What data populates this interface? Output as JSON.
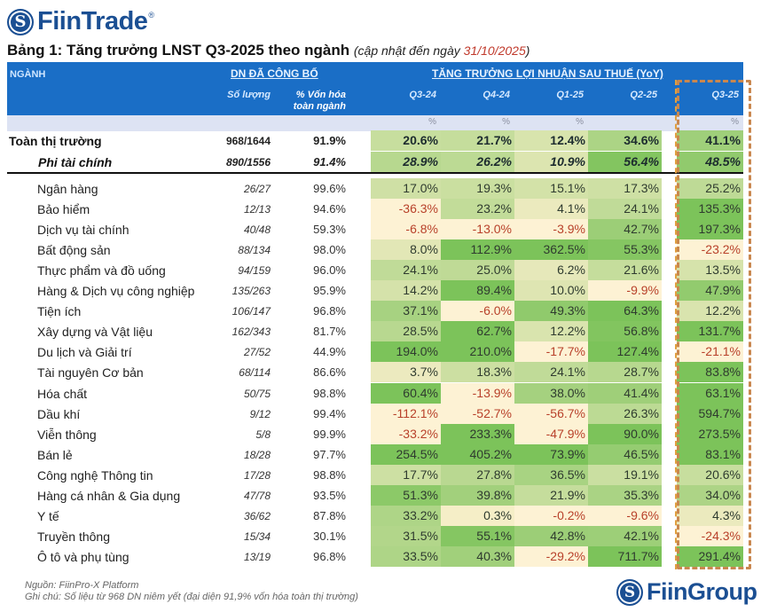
{
  "brand": {
    "top_logo": "FiinTrade",
    "top_logo_mark": "reg-mark",
    "bottom_logo": "FiinGroup"
  },
  "title": {
    "main": "Bảng 1: Tăng trưởng LNST Q3-2025 theo ngành",
    "sub_prefix": "(cập nhật đến ngày ",
    "date": "31/10/2025",
    "sub_suffix": ")"
  },
  "header": {
    "sector": "NGÀNH",
    "group_reported": "DN ĐÃ CÔNG BỐ",
    "count_col": "Số lượng",
    "cap_col_line1": "% Vốn hóa",
    "cap_col_line2": "toàn ngành",
    "group_growth": "TĂNG TRƯỞNG LỢI NHUẬN SAU THUẾ (YoY)",
    "quarters": [
      "Q3-24",
      "Q4-24",
      "Q1-25",
      "Q2-25",
      "Q3-25"
    ],
    "units": [
      "%",
      "%",
      "%",
      "",
      "%"
    ]
  },
  "highlight_column": "Q3-25",
  "colors": {
    "header_blue": "#1a6ec6",
    "negative": "#b8412a",
    "positive": "#2f3b2f",
    "highlight_border": "#c9874f",
    "strong_green": "#7cc35a",
    "pale": "#fdf2d4"
  },
  "rows": [
    {
      "type": "total",
      "name": "Toàn thị trường",
      "count": "968/1644",
      "cap": "91.9%",
      "values": [
        "20.6%",
        "21.7%",
        "12.4%",
        "34.6%",
        "41.1%"
      ]
    },
    {
      "type": "sub",
      "name": "Phi tài chính",
      "count": "890/1556",
      "cap": "91.4%",
      "values": [
        "28.9%",
        "26.2%",
        "10.9%",
        "56.4%",
        "48.5%"
      ]
    },
    {
      "type": "sector",
      "name": "Ngân hàng",
      "count": "26/27",
      "cap": "99.6%",
      "values": [
        "17.0%",
        "19.3%",
        "15.1%",
        "17.3%",
        "25.2%"
      ]
    },
    {
      "type": "sector",
      "name": "Bảo hiểm",
      "count": "12/13",
      "cap": "94.6%",
      "values": [
        "-36.3%",
        "23.2%",
        "4.1%",
        "24.1%",
        "135.3%"
      ]
    },
    {
      "type": "sector",
      "name": "Dịch vụ tài chính",
      "count": "40/48",
      "cap": "59.3%",
      "values": [
        "-6.8%",
        "-13.0%",
        "-3.9%",
        "42.7%",
        "197.3%"
      ]
    },
    {
      "type": "sector",
      "name": "Bất động sản",
      "count": "88/134",
      "cap": "98.0%",
      "values": [
        "8.0%",
        "112.9%",
        "362.5%",
        "55.3%",
        "-23.2%"
      ]
    },
    {
      "type": "sector",
      "name": "Thực phẩm và đồ uống",
      "count": "94/159",
      "cap": "96.0%",
      "values": [
        "24.1%",
        "25.0%",
        "6.2%",
        "21.6%",
        "13.5%"
      ]
    },
    {
      "type": "sector",
      "name": "Hàng & Dịch vụ công nghiệp",
      "count": "135/263",
      "cap": "95.9%",
      "values": [
        "14.2%",
        "89.4%",
        "10.0%",
        "-9.9%",
        "47.9%"
      ]
    },
    {
      "type": "sector",
      "name": "Tiện ích",
      "count": "106/147",
      "cap": "96.8%",
      "values": [
        "37.1%",
        "-6.0%",
        "49.3%",
        "64.3%",
        "12.2%"
      ]
    },
    {
      "type": "sector",
      "name": "Xây dựng và Vật liệu",
      "count": "162/343",
      "cap": "81.7%",
      "values": [
        "28.5%",
        "62.7%",
        "12.2%",
        "56.8%",
        "131.7%"
      ]
    },
    {
      "type": "sector",
      "name": "Du lịch và Giải trí",
      "count": "27/52",
      "cap": "44.9%",
      "values": [
        "194.0%",
        "210.0%",
        "-17.7%",
        "127.4%",
        "-21.1%"
      ]
    },
    {
      "type": "sector",
      "name": "Tài nguyên Cơ bản",
      "count": "68/114",
      "cap": "86.6%",
      "values": [
        "3.7%",
        "18.3%",
        "24.1%",
        "28.7%",
        "83.8%"
      ]
    },
    {
      "type": "sector",
      "name": "Hóa chất",
      "count": "50/75",
      "cap": "98.8%",
      "values": [
        "60.4%",
        "-13.9%",
        "38.0%",
        "41.4%",
        "63.1%"
      ]
    },
    {
      "type": "sector",
      "name": "Dầu khí",
      "count": "9/12",
      "cap": "99.4%",
      "values": [
        "-112.1%",
        "-52.7%",
        "-56.7%",
        "26.3%",
        "594.7%"
      ]
    },
    {
      "type": "sector",
      "name": "Viễn thông",
      "count": "5/8",
      "cap": "99.9%",
      "values": [
        "-33.2%",
        "233.3%",
        "-47.9%",
        "90.0%",
        "273.5%"
      ]
    },
    {
      "type": "sector",
      "name": "Bán lẻ",
      "count": "18/28",
      "cap": "97.7%",
      "values": [
        "254.5%",
        "405.2%",
        "73.9%",
        "46.5%",
        "83.1%"
      ]
    },
    {
      "type": "sector",
      "name": "Công nghệ Thông tin",
      "count": "17/28",
      "cap": "98.8%",
      "values": [
        "17.7%",
        "27.8%",
        "36.5%",
        "19.1%",
        "20.6%"
      ]
    },
    {
      "type": "sector",
      "name": "Hàng cá nhân & Gia dụng",
      "count": "47/78",
      "cap": "93.5%",
      "values": [
        "51.3%",
        "39.8%",
        "21.9%",
        "35.3%",
        "34.0%"
      ]
    },
    {
      "type": "sector",
      "name": "Y tế",
      "count": "36/62",
      "cap": "87.8%",
      "values": [
        "33.2%",
        "0.3%",
        "-0.2%",
        "-9.6%",
        "4.3%"
      ]
    },
    {
      "type": "sector",
      "name": "Truyền thông",
      "count": "15/34",
      "cap": "30.1%",
      "values": [
        "31.5%",
        "55.1%",
        "42.8%",
        "42.1%",
        "-24.3%"
      ]
    },
    {
      "type": "sector",
      "name": "Ô tô và phụ tùng",
      "count": "13/19",
      "cap": "96.8%",
      "values": [
        "33.5%",
        "40.3%",
        "-29.2%",
        "711.7%",
        "291.4%"
      ]
    }
  ],
  "footer": {
    "source": "Nguồn: FiinPro-X Platform",
    "note": "Ghi chú: Số liệu từ 968 DN niêm yết (đại diện 91,9% vốn hóa toàn thị trường)"
  }
}
